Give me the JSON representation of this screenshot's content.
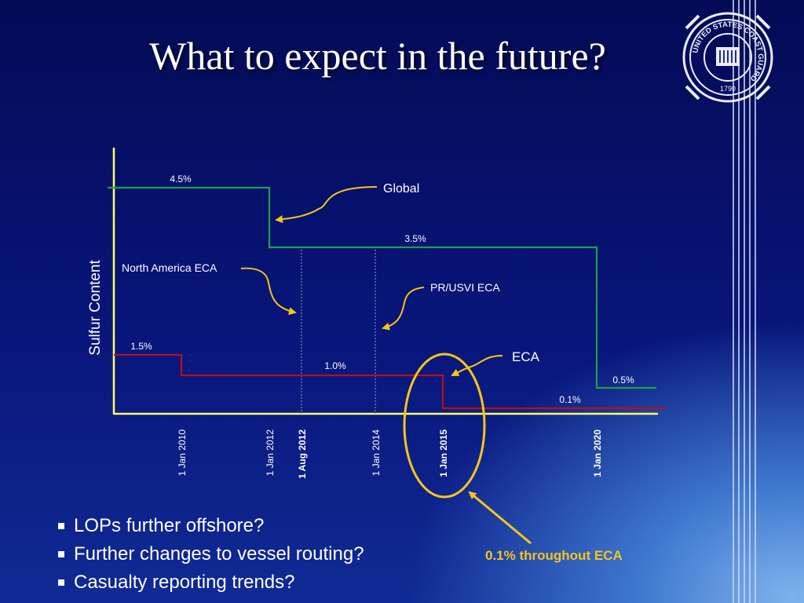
{
  "slide": {
    "title": "What to expect in the future?",
    "bullets": [
      "LOPs further offshore?",
      "Further changes to vessel routing?",
      "Casualty reporting trends?"
    ],
    "eca_callout": "0.1% throughout ECA"
  },
  "seal": {
    "ring_text": "UNITED STATES COAST GUARD",
    "year": "1790"
  },
  "colors": {
    "global_series": "#1f9e4a",
    "eca_series": "#b3101c",
    "axis": "#ffff66",
    "highlight": "#f5c518"
  },
  "chart_data": {
    "type": "line",
    "step": true,
    "ylabel": "Sulfur Content",
    "xlabel": "",
    "x_ticks": [
      {
        "label": "1 Jan 2010",
        "bold": false
      },
      {
        "label": "1 Jan 2012",
        "bold": false
      },
      {
        "label": "1 Aug 2012",
        "bold": true
      },
      {
        "label": "1 Jan 2014",
        "bold": false
      },
      {
        "label": "1 Jan 2015",
        "bold": true
      },
      {
        "label": "1 Jan 2020",
        "bold": true
      }
    ],
    "series": [
      {
        "name": "Global",
        "color": "#1f9e4a",
        "segments": [
          {
            "from": "2009-05-01",
            "to": "2012-01-01",
            "value": 4.5,
            "label": "4.5%"
          },
          {
            "from": "2012-01-01",
            "to": "2020-01-01",
            "value": 3.5,
            "label": "3.5%"
          },
          {
            "from": "2020-01-01",
            "to": "2020-11-01",
            "value": 0.5,
            "label": "0.5%"
          }
        ]
      },
      {
        "name": "ECA",
        "color": "#b3101c",
        "segments": [
          {
            "from": "2009-05-01",
            "to": "2010-01-01",
            "value": 1.5,
            "label": "1.5%"
          },
          {
            "from": "2010-01-01",
            "to": "2015-01-01",
            "value": 1.0,
            "label": "1.0%"
          },
          {
            "from": "2015-01-01",
            "to": "2021-01-01",
            "value": 0.1,
            "label": "0.1%"
          }
        ]
      }
    ],
    "annotations": [
      {
        "text": "Global",
        "points_to": "Global step at 1 Jan 2012"
      },
      {
        "text": "North America ECA",
        "points_to": "1 Aug 2012"
      },
      {
        "text": "PR/USVI ECA",
        "points_to": "1 Jan 2014"
      },
      {
        "text": "ECA",
        "points_to": "ECA step at 1 Jan 2015"
      }
    ],
    "highlight": {
      "around": "1 Jan 2015"
    }
  }
}
